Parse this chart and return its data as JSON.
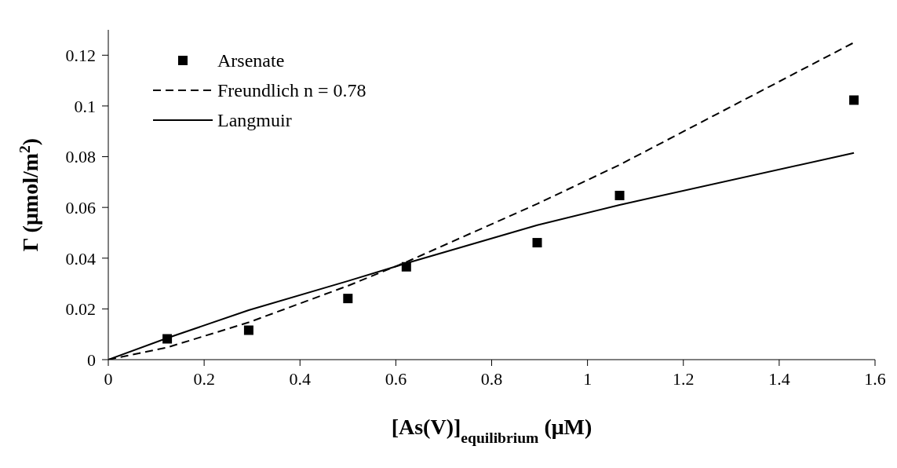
{
  "chart_data": {
    "type": "scatter",
    "xlabel": "[As(V)]$_{equilibrium}$ (μM)",
    "ylabel": "Γ (μmol/m$^{2}$)",
    "xlim": [
      0,
      1.6
    ],
    "xticks": [
      0,
      0.2,
      0.4,
      0.6,
      0.8,
      1,
      1.2,
      1.4,
      1.6
    ],
    "ylim": [
      0,
      0.13
    ],
    "yticks": [
      0,
      0.02,
      0.04,
      0.06,
      0.08,
      0.1,
      0.12
    ],
    "grid": false,
    "legend": "top left",
    "series": [
      {
        "name": "Arsenate",
        "marker": "square",
        "color": "#000000",
        "x": [
          0.123,
          0.293,
          0.5,
          0.622,
          0.895,
          1.067,
          1.556
        ],
        "values": [
          0.0082,
          0.0116,
          0.0241,
          0.0366,
          0.0461,
          0.0647,
          0.1023
        ]
      },
      {
        "name": "Freundlich n = 0.78",
        "type": "line",
        "line_style": "dashed",
        "marker": "none",
        "color": "#000000",
        "x": [
          0,
          0.123,
          0.293,
          0.5,
          0.622,
          0.895,
          1.067,
          1.556
        ],
        "values": [
          0,
          0.0048,
          0.0147,
          0.0291,
          0.0385,
          0.0614,
          0.0768,
          0.125
        ]
      },
      {
        "name": "Langmuir",
        "type": "line",
        "line_style": "solid",
        "marker": "none",
        "color": "#000000",
        "x": [
          0,
          0.123,
          0.293,
          0.5,
          0.622,
          0.895,
          1.067,
          1.556
        ],
        "values": [
          0,
          0.0085,
          0.0195,
          0.031,
          0.038,
          0.053,
          0.061,
          0.0815
        ]
      }
    ]
  }
}
